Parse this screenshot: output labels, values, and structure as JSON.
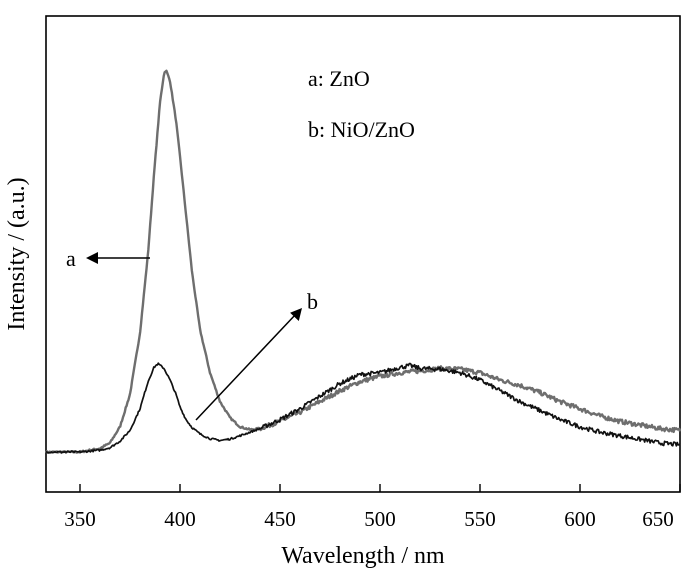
{
  "chart_data": {
    "type": "line",
    "title": "",
    "xlabel": "Wavelength / nm",
    "ylabel": "Intensity / (a.u.)",
    "xlim": [
      333,
      650
    ],
    "ylim": [
      0,
      1.1
    ],
    "xticks": [
      350,
      400,
      450,
      500,
      550,
      600,
      650
    ],
    "xtick_labels": [
      "350",
      "400",
      "450",
      "500",
      "550",
      "600",
      "650"
    ],
    "yticks_shown": false,
    "grid": false,
    "legend": {
      "placement": "top-center",
      "entries": [
        "a: ZnO",
        "b: NiO/ZnO"
      ]
    },
    "series": [
      {
        "name": "a: ZnO",
        "color": "#6e6e6e",
        "x": [
          333,
          350,
          360,
          365,
          370,
          375,
          380,
          384,
          387,
          390,
          392,
          393,
          395,
          398,
          400,
          403,
          406,
          410,
          415,
          420,
          425,
          430,
          435,
          440,
          445,
          450,
          460,
          470,
          480,
          490,
          500,
          510,
          520,
          530,
          540,
          550,
          560,
          570,
          580,
          590,
          600,
          610,
          620,
          630,
          640,
          650
        ],
        "y": [
          0.0,
          0.0,
          0.01,
          0.025,
          0.07,
          0.16,
          0.33,
          0.55,
          0.77,
          0.97,
          1.05,
          1.06,
          1.03,
          0.92,
          0.82,
          0.66,
          0.5,
          0.34,
          0.22,
          0.14,
          0.095,
          0.07,
          0.062,
          0.065,
          0.075,
          0.085,
          0.11,
          0.14,
          0.17,
          0.195,
          0.21,
          0.22,
          0.225,
          0.232,
          0.23,
          0.22,
          0.2,
          0.185,
          0.165,
          0.14,
          0.12,
          0.1,
          0.085,
          0.075,
          0.065,
          0.06
        ]
      },
      {
        "name": "b: NiO/ZnO",
        "color": "#111111",
        "x": [
          333,
          350,
          360,
          365,
          370,
          375,
          380,
          384,
          387,
          389,
          392,
          395,
          398,
          400,
          403,
          406,
          410,
          415,
          420,
          425,
          430,
          440,
          450,
          460,
          470,
          480,
          490,
          500,
          510,
          515,
          520,
          530,
          540,
          550,
          560,
          570,
          580,
          590,
          600,
          610,
          620,
          630,
          640,
          650
        ],
        "y": [
          0.0,
          0.0,
          0.005,
          0.012,
          0.03,
          0.06,
          0.12,
          0.195,
          0.235,
          0.245,
          0.232,
          0.2,
          0.16,
          0.125,
          0.09,
          0.068,
          0.05,
          0.037,
          0.032,
          0.036,
          0.045,
          0.065,
          0.09,
          0.12,
          0.155,
          0.19,
          0.215,
          0.22,
          0.235,
          0.24,
          0.232,
          0.23,
          0.22,
          0.2,
          0.17,
          0.14,
          0.115,
          0.09,
          0.07,
          0.055,
          0.045,
          0.035,
          0.025,
          0.02
        ]
      }
    ],
    "annotations": [
      {
        "text": "a",
        "arrow_to_series": "a: ZnO"
      },
      {
        "text": "b",
        "arrow_to_series": "b: NiO/ZnO"
      }
    ]
  }
}
